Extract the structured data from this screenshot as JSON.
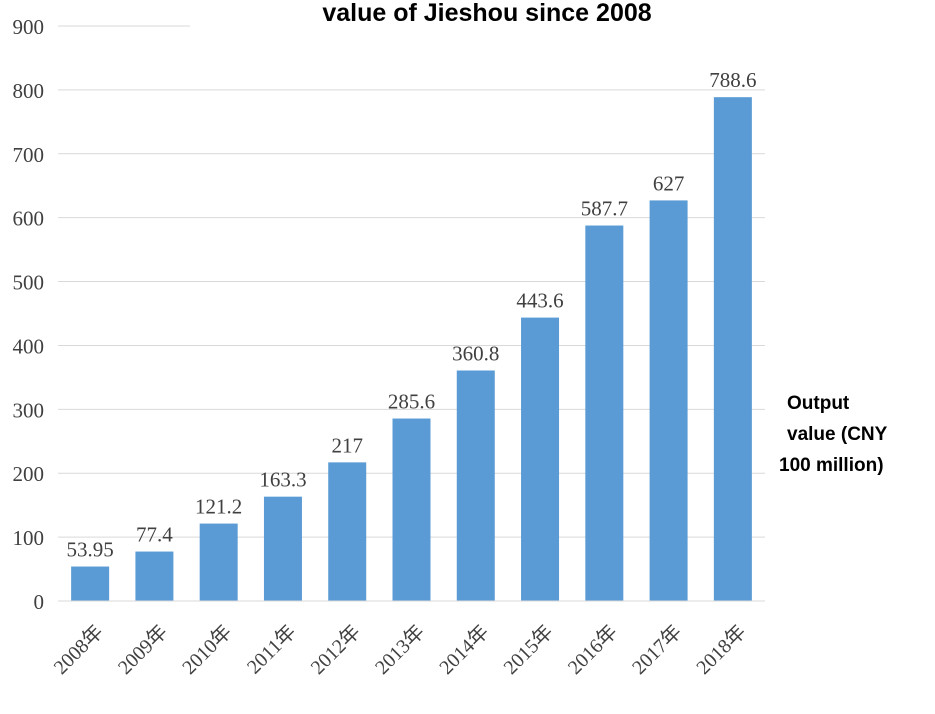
{
  "chart_data": {
    "type": "bar",
    "title": "value of Jieshou since 2008",
    "ylabel_lines": [
      "Output",
      "value (CNY",
      "100 million)"
    ],
    "categories": [
      "2008年",
      "2009年",
      "2010年",
      "2011年",
      "2012年",
      "2013年",
      "2014年",
      "2015年",
      "2016年",
      "2017年",
      "2018年"
    ],
    "values": [
      53.95,
      77.4,
      121.2,
      163.3,
      217,
      285.6,
      360.8,
      443.6,
      587.7,
      627,
      788.6
    ],
    "data_labels": [
      "53.95",
      "77.4",
      "121.2",
      "163.3",
      "217",
      "285.6",
      "360.8",
      "443.6",
      "587.7",
      "627",
      "788.6"
    ],
    "yticks": [
      0,
      100,
      200,
      300,
      400,
      500,
      600,
      700,
      800,
      900
    ],
    "ylim": [
      0,
      900
    ],
    "grid": true,
    "bar_color": "#5b9bd5",
    "grid_color": "#d9d9d9"
  }
}
